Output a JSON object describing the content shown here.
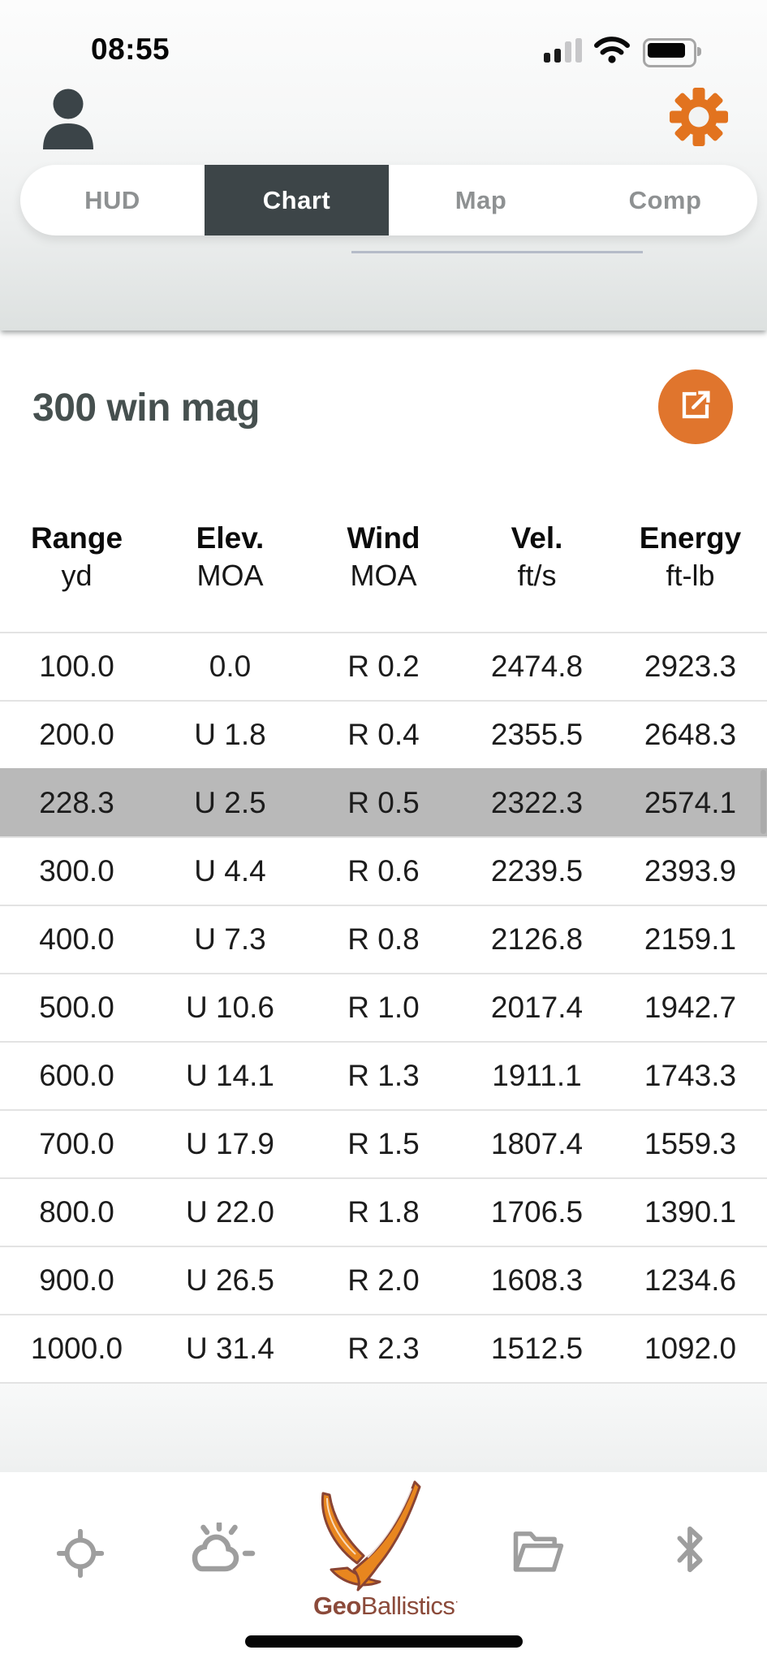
{
  "status_bar": {
    "time": "08:55"
  },
  "header": {
    "profile_icon": "person-icon",
    "settings_icon": "gear-icon"
  },
  "tab_bar": {
    "tabs": [
      {
        "label": "HUD",
        "active": false
      },
      {
        "label": "Chart",
        "active": true
      },
      {
        "label": "Map",
        "active": false
      },
      {
        "label": "Comp",
        "active": false
      }
    ]
  },
  "content": {
    "title": "300 win mag",
    "export_icon": "export-icon"
  },
  "table": {
    "columns": [
      {
        "label": "Range",
        "unit": "yd"
      },
      {
        "label": "Elev.",
        "unit": "MOA"
      },
      {
        "label": "Wind",
        "unit": "MOA"
      },
      {
        "label": "Vel.",
        "unit": "ft/s"
      },
      {
        "label": "Energy",
        "unit": "ft-lb"
      }
    ],
    "rows": [
      {
        "cells": [
          "100.0",
          "0.0",
          "R 0.2",
          "2474.8",
          "2923.3"
        ],
        "highlighted": false
      },
      {
        "cells": [
          "200.0",
          "U 1.8",
          "R 0.4",
          "2355.5",
          "2648.3"
        ],
        "highlighted": false
      },
      {
        "cells": [
          "228.3",
          "U 2.5",
          "R 0.5",
          "2322.3",
          "2574.1"
        ],
        "highlighted": true
      },
      {
        "cells": [
          "300.0",
          "U 4.4",
          "R 0.6",
          "2239.5",
          "2393.9"
        ],
        "highlighted": false
      },
      {
        "cells": [
          "400.0",
          "U 7.3",
          "R 0.8",
          "2126.8",
          "2159.1"
        ],
        "highlighted": false
      },
      {
        "cells": [
          "500.0",
          "U 10.6",
          "R 1.0",
          "2017.4",
          "1942.7"
        ],
        "highlighted": false
      },
      {
        "cells": [
          "600.0",
          "U 14.1",
          "R 1.3",
          "1911.1",
          "1743.3"
        ],
        "highlighted": false
      },
      {
        "cells": [
          "700.0",
          "U 17.9",
          "R 1.5",
          "1807.4",
          "1559.3"
        ],
        "highlighted": false
      },
      {
        "cells": [
          "800.0",
          "U 22.0",
          "R 1.8",
          "1706.5",
          "1390.1"
        ],
        "highlighted": false
      },
      {
        "cells": [
          "900.0",
          "U 26.5",
          "R 2.0",
          "1608.3",
          "1234.6"
        ],
        "highlighted": false
      },
      {
        "cells": [
          "1000.0",
          "U 31.4",
          "R 2.3",
          "1512.5",
          "1092.0"
        ],
        "highlighted": false
      }
    ]
  },
  "footer": {
    "icons": [
      "gps-target-icon",
      "weather-icon",
      "geoballistics-logo",
      "folder-icon",
      "bluetooth-icon"
    ],
    "logo": {
      "bold": "Geo",
      "regular": "Ballistics",
      "mark": "·"
    }
  },
  "colors": {
    "accent_orange": "#e0752d",
    "active_tab_dark": "#3d4548",
    "title_slate": "#46504f",
    "row_highlight": "#b9b9b9",
    "logo_maroon": "#8b4a3a",
    "toolbar_icon_gray": "#9e9e9e"
  }
}
